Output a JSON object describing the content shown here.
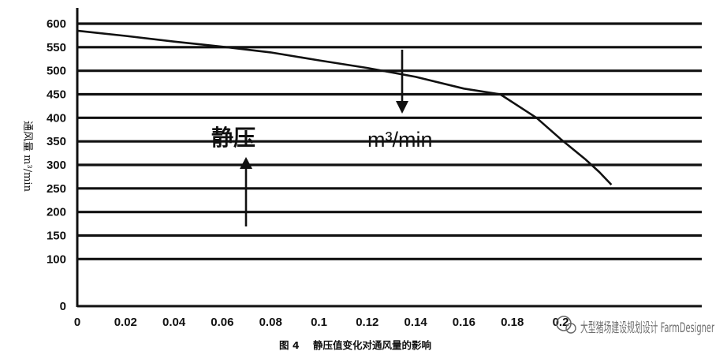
{
  "chart_data": {
    "type": "line",
    "title": "",
    "caption": "图 4    静压值变化对通风量的影响",
    "ylabel": "通风量 m³/min",
    "xlabel": "",
    "xlim": [
      0,
      0.225
    ],
    "ylim": [
      0,
      600
    ],
    "x_ticks": [
      "0",
      "0.02",
      "0.04",
      "0.06",
      "0.08",
      "0.1",
      "0.12",
      "0.14",
      "0.16",
      "0.18",
      "0.2"
    ],
    "y_ticks": [
      "0",
      "100",
      "150",
      "200",
      "250",
      "300",
      "350",
      "400",
      "450",
      "500",
      "550",
      "600"
    ],
    "grid": true,
    "series": [
      {
        "x": [
          0,
          0.02,
          0.04,
          0.06,
          0.08,
          0.1,
          0.12,
          0.14,
          0.16,
          0.175,
          0.19,
          0.2,
          0.21
        ],
        "values": [
          585,
          574,
          562,
          551,
          539,
          522,
          506,
          487,
          462,
          450,
          400,
          355,
          313
        ]
      },
      {
        "x": [
          0.21,
          0.216,
          0.221
        ],
        "values": [
          313,
          285,
          258
        ]
      }
    ],
    "annotations": [
      {
        "text": "静压",
        "arrow": "up"
      },
      {
        "text": "m³/min",
        "arrow": "down"
      }
    ]
  },
  "watermark": "大型猪场建设规划设计 FarmDesigner"
}
